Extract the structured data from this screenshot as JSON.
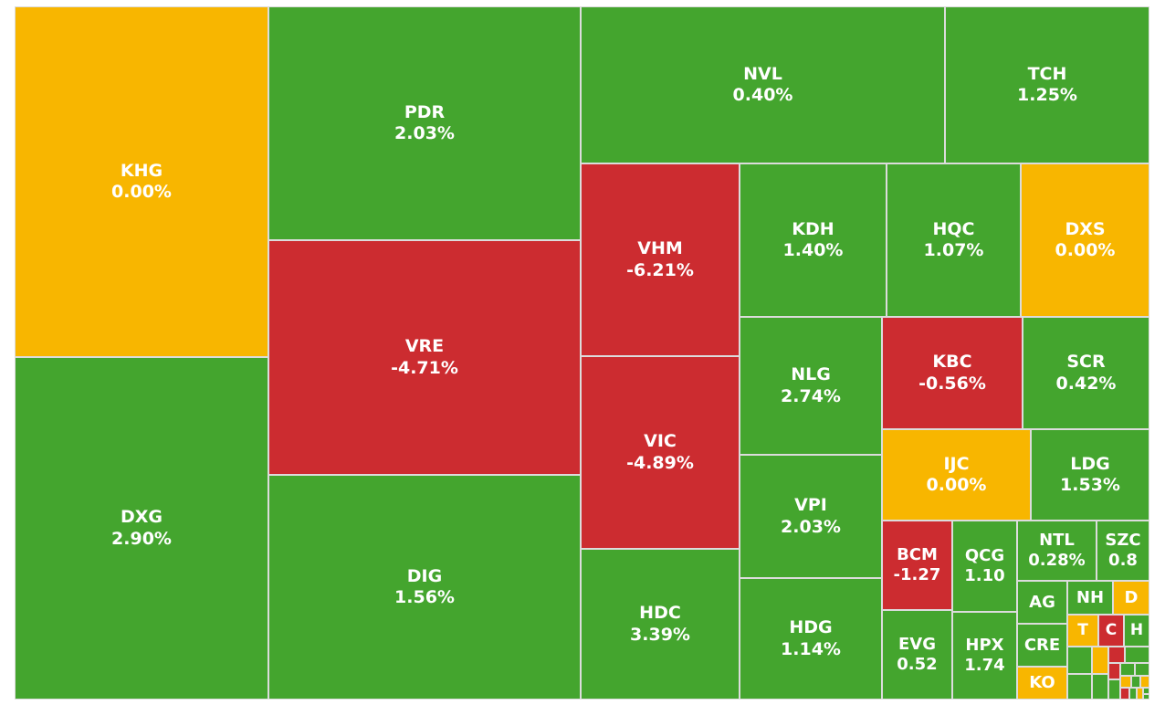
{
  "chart_data": {
    "type": "treemap",
    "colors": {
      "up": "#44a52e",
      "down": "#cc2c30",
      "flat": "#f8b600"
    },
    "items": [
      {
        "name": "KHG",
        "change": "0.00%",
        "status": "flat"
      },
      {
        "name": "DXG",
        "change": "2.90%",
        "status": "up"
      },
      {
        "name": "PDR",
        "change": "2.03%",
        "status": "up"
      },
      {
        "name": "VRE",
        "change": "-4.71%",
        "status": "down"
      },
      {
        "name": "DIG",
        "change": "1.56%",
        "status": "up"
      },
      {
        "name": "NVL",
        "change": "0.40%",
        "status": "up"
      },
      {
        "name": "TCH",
        "change": "1.25%",
        "status": "up"
      },
      {
        "name": "VHM",
        "change": "-6.21%",
        "status": "down"
      },
      {
        "name": "VIC",
        "change": "-4.89%",
        "status": "down"
      },
      {
        "name": "HDC",
        "change": "3.39%",
        "status": "up"
      },
      {
        "name": "KDH",
        "change": "1.40%",
        "status": "up"
      },
      {
        "name": "HQC",
        "change": "1.07%",
        "status": "up"
      },
      {
        "name": "DXS",
        "change": "0.00%",
        "status": "flat"
      },
      {
        "name": "NLG",
        "change": "2.74%",
        "status": "up"
      },
      {
        "name": "KBC",
        "change": "-0.56%",
        "status": "down"
      },
      {
        "name": "SCR",
        "change": "0.42%",
        "status": "up"
      },
      {
        "name": "VPI",
        "change": "2.03%",
        "status": "up"
      },
      {
        "name": "IJC",
        "change": "0.00%",
        "status": "flat"
      },
      {
        "name": "LDG",
        "change": "1.53%",
        "status": "up"
      },
      {
        "name": "HDG",
        "change": "1.14%",
        "status": "up"
      },
      {
        "name": "BCM",
        "change": "-1.27",
        "status": "down"
      },
      {
        "name": "QCG",
        "change": "1.10",
        "status": "up"
      },
      {
        "name": "NTL",
        "change": "0.28%",
        "status": "up"
      },
      {
        "name": "SZC",
        "change": "0.8",
        "status": "up"
      },
      {
        "name": "EVG",
        "change": "0.52",
        "status": "up"
      },
      {
        "name": "HPX",
        "change": "1.74",
        "status": "up"
      },
      {
        "name": "AG",
        "change": "",
        "status": "up"
      },
      {
        "name": "NH",
        "change": "",
        "status": "up"
      },
      {
        "name": "D",
        "change": "",
        "status": "flat"
      },
      {
        "name": "CRE",
        "change": "",
        "status": "up"
      },
      {
        "name": "T",
        "change": "",
        "status": "flat"
      },
      {
        "name": "C",
        "change": "",
        "status": "down"
      },
      {
        "name": "H",
        "change": "",
        "status": "up"
      },
      {
        "name": "KO",
        "change": "",
        "status": "flat"
      },
      {
        "name": "",
        "change": "",
        "status": "up"
      },
      {
        "name": "",
        "change": "",
        "status": "flat"
      },
      {
        "name": "",
        "change": "",
        "status": "down"
      },
      {
        "name": "",
        "change": "",
        "status": "up"
      },
      {
        "name": "",
        "change": "",
        "status": "up"
      },
      {
        "name": "",
        "change": "",
        "status": "down"
      },
      {
        "name": "",
        "change": "",
        "status": "up"
      },
      {
        "name": "",
        "change": "",
        "status": "up"
      },
      {
        "name": "",
        "change": "",
        "status": "up"
      },
      {
        "name": "",
        "change": "",
        "status": "up"
      },
      {
        "name": "",
        "change": "",
        "status": "flat"
      },
      {
        "name": "",
        "change": "",
        "status": "up"
      },
      {
        "name": "",
        "change": "",
        "status": "flat"
      },
      {
        "name": "",
        "change": "",
        "status": "down"
      },
      {
        "name": "",
        "change": "",
        "status": "up"
      },
      {
        "name": "",
        "change": "",
        "status": "flat"
      },
      {
        "name": "",
        "change": "",
        "status": "up"
      },
      {
        "name": "",
        "change": "",
        "status": "up"
      }
    ]
  }
}
